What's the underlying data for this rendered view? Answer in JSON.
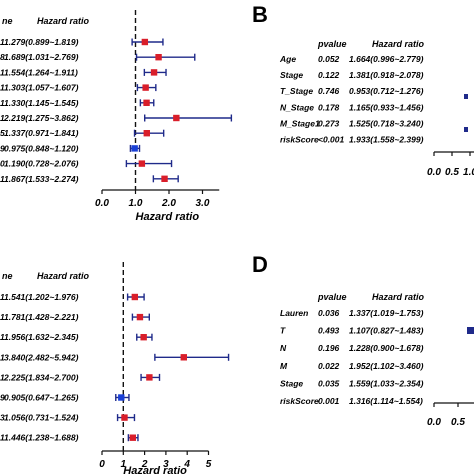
{
  "colors": {
    "ci": "#1f2a8a",
    "risk": "#d91e2a",
    "protect": "#1a40d6",
    "axis": "#111111"
  },
  "chart_data": [
    {
      "panel": "A",
      "type": "forest",
      "visible_variable_suffixes": [
        "1",
        "8",
        "1",
        "1",
        "1",
        "1",
        "5",
        "9",
        "0",
        "1"
      ],
      "columns": {
        "variable": "ne",
        "hr": "Hazard ratio"
      },
      "hr_labels": [
        "1.279(0.899~1.819)",
        "1.689(1.031~2.769)",
        "1.554(1.264~1.911)",
        "1.303(1.057~1.607)",
        "1.330(1.145~1.545)",
        "2.219(1.275~3.862)",
        "1.337(0.971~1.841)",
        "0.975(0.848~1.120)",
        "1.190(0.728~2.076)",
        "1.867(1.533~2.274)"
      ],
      "hr": [
        1.279,
        1.689,
        1.554,
        1.303,
        1.33,
        2.219,
        1.337,
        0.975,
        1.19,
        1.867
      ],
      "lower": [
        0.899,
        1.031,
        1.264,
        1.057,
        1.145,
        1.275,
        0.971,
        0.848,
        0.728,
        1.533
      ],
      "upper": [
        1.819,
        2.769,
        1.911,
        1.607,
        1.545,
        3.862,
        1.841,
        1.12,
        2.076,
        2.274
      ],
      "xticks": [
        "0.0",
        "1.0",
        "2.0",
        "3.0"
      ],
      "xlim": [
        0,
        3.5
      ],
      "xlabel": "Hazard ratio"
    },
    {
      "panel": "B",
      "type": "forest",
      "columns": {
        "variable": "",
        "pvalue": "pvalue",
        "hr": "Hazard ratio"
      },
      "variables": [
        "Age",
        "Stage",
        "T_Stage",
        "N_Stage",
        "M_Stage1",
        "riskScore"
      ],
      "pvalues": [
        "0.052",
        "0.122",
        "0.746",
        "0.178",
        "0.273",
        "<0.001"
      ],
      "hr_labels": [
        "1.664(0.996~2.779)",
        "1.381(0.918~2.078)",
        "0.953(0.712~1.276)",
        "1.165(0.933~1.456)",
        "1.525(0.718~3.240)",
        "1.933(1.558~2.399)"
      ],
      "xticks": [
        "0.0",
        "0.5",
        "1.0"
      ]
    },
    {
      "panel": "C",
      "type": "forest",
      "visible_variable_suffixes": [
        "1",
        "1",
        "1",
        "1",
        "1",
        "9",
        "3",
        "1"
      ],
      "columns": {
        "variable": "ne",
        "hr": "Hazard ratio"
      },
      "hr_labels": [
        "1.541(1.202~1.976)",
        "1.781(1.428~2.221)",
        "1.956(1.632~2.345)",
        "3.840(2.482~5.942)",
        "2.225(1.834~2.700)",
        "0.905(0.647~1.265)",
        "1.056(0.731~1.524)",
        "1.446(1.238~1.688)"
      ],
      "hr": [
        1.541,
        1.781,
        1.956,
        3.84,
        2.225,
        0.905,
        1.056,
        1.446
      ],
      "lower": [
        1.202,
        1.428,
        1.632,
        2.482,
        1.834,
        0.647,
        0.731,
        1.238
      ],
      "upper": [
        1.976,
        2.221,
        2.345,
        5.942,
        2.7,
        1.265,
        1.524,
        1.688
      ],
      "xticks": [
        "0",
        "1",
        "2",
        "3",
        "4",
        "5"
      ],
      "xlim": [
        0,
        5
      ],
      "xlabel": "Hazard ratio"
    },
    {
      "panel": "D",
      "type": "forest",
      "columns": {
        "variable": "",
        "pvalue": "pvalue",
        "hr": "Hazard ratio"
      },
      "variables": [
        "Lauren",
        "T",
        "N",
        "M",
        "Stage",
        "riskScore"
      ],
      "pvalues": [
        "0.036",
        "0.493",
        "0.196",
        "0.022",
        "0.035",
        "0.001"
      ],
      "hr_labels": [
        "1.337(1.019~1.753)",
        "1.107(0.827~1.483)",
        "1.228(0.900~1.678)",
        "1.952(1.102~3.460)",
        "1.559(1.033~2.354)",
        "1.316(1.114~1.554)"
      ],
      "xticks": [
        "0.0",
        "0.5"
      ]
    }
  ]
}
